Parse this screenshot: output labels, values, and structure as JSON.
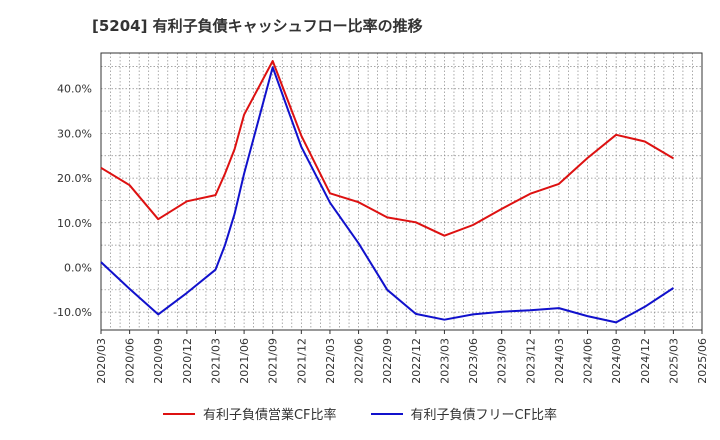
{
  "chart_data": {
    "type": "line",
    "title": "[5204]  有利子負債キャッシュフロー比率の推移",
    "x": [
      "2020/03",
      "2020/06",
      "2020/09",
      "2020/12",
      "2021/03",
      "2021/06",
      "2021/09",
      "2021/12",
      "2022/03",
      "2022/06",
      "2022/09",
      "2022/12",
      "2023/03",
      "2023/06",
      "2023/09",
      "2023/12",
      "2024/03",
      "2024/06",
      "2024/09",
      "2024/12",
      "2025/03",
      "2025/06"
    ],
    "y_ticks": [
      "-10.0%",
      "0.0%",
      "10.0%",
      "20.0%",
      "30.0%",
      "40.0%"
    ],
    "ylim": [
      -14,
      48
    ],
    "grid": true,
    "legend_position": "bottom",
    "series": [
      {
        "name": "有利子負債営業CF比率",
        "color": "#dd1111",
        "points": [
          [
            "2020/03",
            22.3
          ],
          [
            "2020/06",
            18.4
          ],
          [
            "2020/09",
            10.8
          ],
          [
            "2020/12",
            14.8
          ],
          [
            "2021/03",
            16.2
          ],
          [
            "2021/04",
            21
          ],
          [
            "2021/05",
            26.5
          ],
          [
            "2021/06",
            34.2
          ],
          [
            "2021/09",
            46.2
          ],
          [
            "2021/12",
            29.5
          ],
          [
            "2022/03",
            16.6
          ],
          [
            "2022/06",
            14.6
          ],
          [
            "2022/09",
            11.2
          ],
          [
            "2022/12",
            10.1
          ],
          [
            "2023/03",
            7.1
          ],
          [
            "2023/06",
            9.5
          ],
          [
            "2023/09",
            13.1
          ],
          [
            "2023/12",
            16.5
          ],
          [
            "2024/03",
            18.7
          ],
          [
            "2024/06",
            24.5
          ],
          [
            "2024/09",
            29.7
          ],
          [
            "2024/12",
            28.2
          ],
          [
            "2025/03",
            24.4
          ]
        ]
      },
      {
        "name": "有利子負債フリーCF比率",
        "color": "#1111cc",
        "points": [
          [
            "2020/03",
            1.2
          ],
          [
            "2020/06",
            -4.8
          ],
          [
            "2020/09",
            -10.5
          ],
          [
            "2020/12",
            -5.7
          ],
          [
            "2021/03",
            -0.5
          ],
          [
            "2021/04",
            5
          ],
          [
            "2021/05",
            12
          ],
          [
            "2021/06",
            21.0
          ],
          [
            "2021/09",
            44.8
          ],
          [
            "2021/12",
            27.0
          ],
          [
            "2022/03",
            14.5
          ],
          [
            "2022/06",
            5.4
          ],
          [
            "2022/09",
            -5.0
          ],
          [
            "2022/12",
            -10.4
          ],
          [
            "2023/03",
            -11.7
          ],
          [
            "2023/06",
            -10.5
          ],
          [
            "2023/09",
            -9.9
          ],
          [
            "2023/12",
            -9.6
          ],
          [
            "2024/03",
            -9.1
          ],
          [
            "2024/06",
            -10.9
          ],
          [
            "2024/09",
            -12.3
          ],
          [
            "2024/12",
            -8.8
          ],
          [
            "2025/03",
            -4.6
          ]
        ]
      }
    ]
  }
}
